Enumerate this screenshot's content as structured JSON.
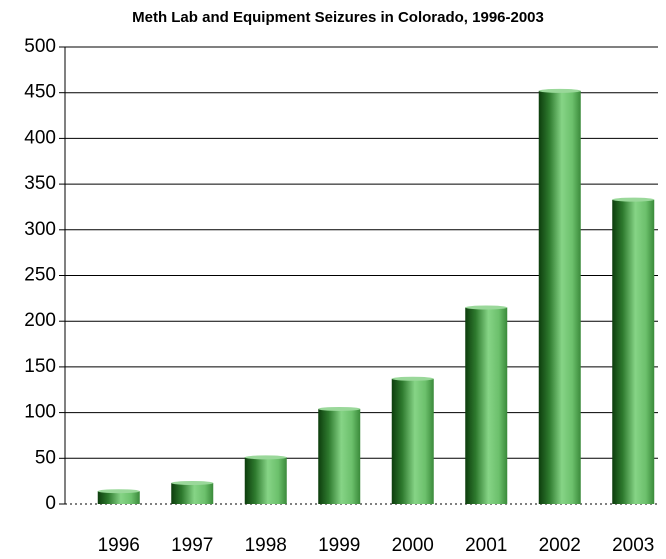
{
  "chart_data": {
    "type": "bar",
    "title": "Meth Lab and Equipment Seizures in Colorado, 1996-2003",
    "categories": [
      "1996",
      "1997",
      "1998",
      "1999",
      "2000",
      "2001",
      "2002",
      "2003"
    ],
    "values": [
      14,
      23,
      51,
      104,
      137,
      215,
      452,
      333
    ],
    "color": "#5fb85f",
    "ylim": [
      0,
      500
    ],
    "yticks": [
      0,
      50,
      100,
      150,
      200,
      250,
      300,
      350,
      400,
      450,
      500
    ],
    "grid": true
  }
}
